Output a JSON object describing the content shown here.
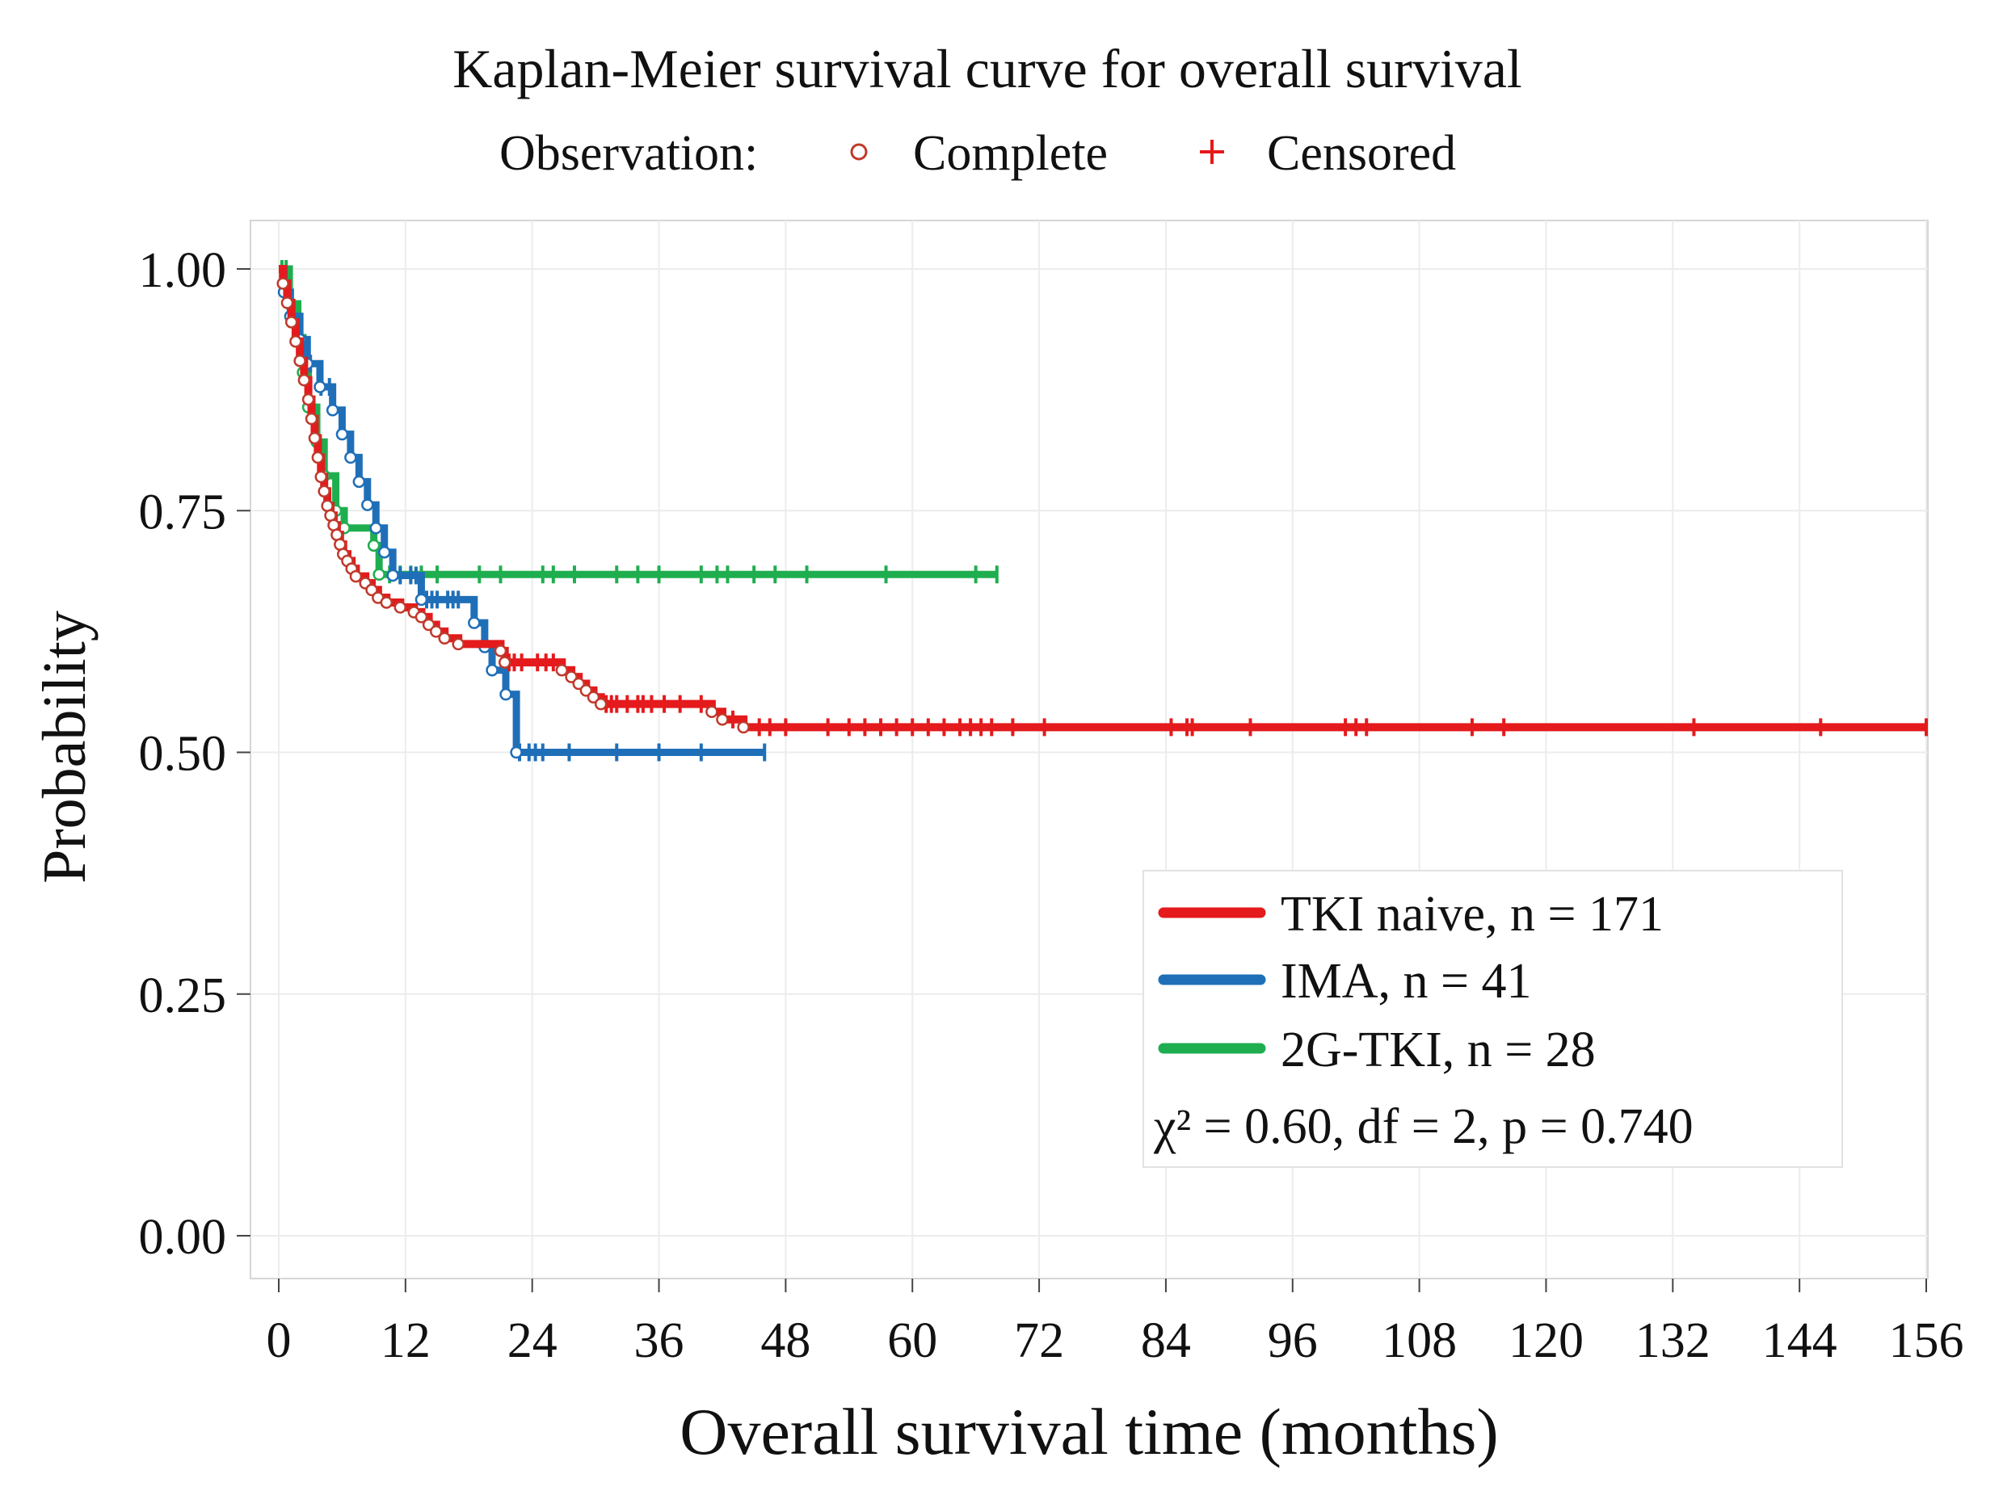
{
  "chart_data": {
    "type": "line",
    "title": "Kaplan-Meier survival curve for overall survival",
    "observation_legend": {
      "label": "Observation:",
      "complete_label": "Complete",
      "censored_label": "Censored"
    },
    "xlabel": "Overall survival time (months)",
    "ylabel": "Probability",
    "xlim": [
      0,
      156
    ],
    "ylim": [
      0,
      1
    ],
    "x_ticks": [
      0,
      12,
      24,
      36,
      48,
      60,
      72,
      84,
      96,
      108,
      120,
      132,
      144,
      156
    ],
    "y_ticks": [
      0,
      0.25,
      0.5,
      0.75,
      1
    ],
    "x_tick_labels": [
      "0",
      "12",
      "24",
      "36",
      "48",
      "60",
      "72",
      "84",
      "96",
      "108",
      "120",
      "132",
      "144",
      "156"
    ],
    "y_tick_labels": [
      "0.00",
      "0.25",
      "0.50",
      "0.75",
      "1.00"
    ],
    "grid": true,
    "legend_position": "bottom-right",
    "stats_text": "χ² = 0.60,  df = 2,  p = 0.740",
    "series": [
      {
        "name": "TKI naive, n = 171",
        "color": "#e41a1c",
        "steps": [
          [
            0,
            1
          ],
          [
            0.4,
            0.985
          ],
          [
            0.8,
            0.965
          ],
          [
            1.2,
            0.945
          ],
          [
            1.6,
            0.925
          ],
          [
            2.0,
            0.905
          ],
          [
            2.4,
            0.885
          ],
          [
            2.8,
            0.865
          ],
          [
            3.1,
            0.845
          ],
          [
            3.4,
            0.825
          ],
          [
            3.7,
            0.805
          ],
          [
            4.0,
            0.785
          ],
          [
            4.3,
            0.77
          ],
          [
            4.6,
            0.755
          ],
          [
            4.9,
            0.745
          ],
          [
            5.2,
            0.735
          ],
          [
            5.5,
            0.725
          ],
          [
            5.8,
            0.715
          ],
          [
            6.1,
            0.705
          ],
          [
            6.5,
            0.698
          ],
          [
            6.9,
            0.69
          ],
          [
            7.3,
            0.682
          ],
          [
            8.2,
            0.675
          ],
          [
            8.8,
            0.668
          ],
          [
            9.4,
            0.66
          ],
          [
            10.2,
            0.655
          ],
          [
            11.5,
            0.65
          ],
          [
            12.8,
            0.645
          ],
          [
            13.5,
            0.64
          ],
          [
            14.2,
            0.632
          ],
          [
            14.9,
            0.625
          ],
          [
            15.7,
            0.618
          ],
          [
            17.0,
            0.612
          ],
          [
            21.0,
            0.605
          ],
          [
            21.4,
            0.593
          ],
          [
            26.8,
            0.585
          ],
          [
            27.7,
            0.578
          ],
          [
            28.4,
            0.571
          ],
          [
            29.1,
            0.564
          ],
          [
            29.8,
            0.557
          ],
          [
            30.5,
            0.55
          ],
          [
            41.0,
            0.542
          ],
          [
            42.0,
            0.534
          ],
          [
            44.0,
            0.526
          ],
          [
            156,
            0.526
          ]
        ],
        "censored": [
          21.8,
          22.3,
          23.0,
          24.5,
          25.3,
          26.0,
          31.0,
          31.5,
          32.0,
          33.0,
          34.0,
          34.5,
          35.3,
          36.5,
          38.0,
          40.0,
          43.0,
          45.5,
          46.5,
          48.0,
          52.0,
          54.0,
          55.5,
          57.0,
          58.5,
          60.0,
          61.5,
          63.0,
          64.5,
          65.5,
          66.5,
          67.5,
          69.5,
          72.5,
          84.5,
          86.0,
          86.5,
          92.0,
          101.0,
          102.0,
          103.0,
          113.0,
          116.0,
          134.0,
          146.0,
          156.0
        ]
      },
      {
        "name": "IMA, n = 41",
        "color": "#1f6fb8",
        "steps": [
          [
            0,
            1
          ],
          [
            0.5,
            0.976
          ],
          [
            1.1,
            0.951
          ],
          [
            2.0,
            0.927
          ],
          [
            2.7,
            0.902
          ],
          [
            3.9,
            0.878
          ],
          [
            5.1,
            0.854
          ],
          [
            6.0,
            0.829
          ],
          [
            6.8,
            0.805
          ],
          [
            7.6,
            0.78
          ],
          [
            8.4,
            0.756
          ],
          [
            9.2,
            0.732
          ],
          [
            10.0,
            0.707
          ],
          [
            10.8,
            0.683
          ],
          [
            13.5,
            0.658
          ],
          [
            18.5,
            0.634
          ],
          [
            19.5,
            0.609
          ],
          [
            20.2,
            0.585
          ],
          [
            21.5,
            0.56
          ],
          [
            22.5,
            0.5
          ],
          [
            46,
            0.5
          ]
        ],
        "censored": [
          3.0,
          4.0,
          4.8,
          11.5,
          12.5,
          13.0,
          14.0,
          14.5,
          15.0,
          16.0,
          16.5,
          17.0,
          22.8,
          23.7,
          24.3,
          25.0,
          27.5,
          32.0,
          36.0,
          40.0,
          46.0
        ]
      },
      {
        "name": "2G-TKI, n = 28",
        "color": "#1fae4f",
        "steps": [
          [
            0,
            1
          ],
          [
            1.0,
            0.964
          ],
          [
            1.8,
            0.929
          ],
          [
            2.3,
            0.893
          ],
          [
            2.8,
            0.857
          ],
          [
            3.6,
            0.821
          ],
          [
            4.3,
            0.786
          ],
          [
            5.4,
            0.75
          ],
          [
            6.2,
            0.732
          ],
          [
            9.0,
            0.714
          ],
          [
            9.5,
            0.684
          ],
          [
            68,
            0.684
          ]
        ],
        "censored": [
          0.3,
          0.7,
          1.1,
          10.5,
          11.5,
          12.5,
          13.5,
          15.0,
          19.0,
          21.0,
          25.0,
          26.0,
          28.0,
          32.0,
          34.0,
          36.0,
          40.0,
          41.5,
          42.5,
          45.0,
          47.0,
          50.0,
          57.5,
          66.0,
          68.0
        ]
      }
    ]
  }
}
